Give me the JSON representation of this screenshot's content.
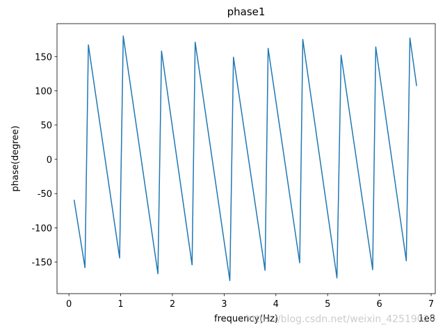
{
  "chart_data": {
    "type": "line",
    "title": "phase1",
    "x_label": "frequency(Hz)",
    "y_label": "phase(degree)",
    "x_offset_label": "1e8",
    "watermark": "https://blog.csdn.net/weixin_42519020",
    "color": "#1f77b4",
    "x": [
      0.1,
      0.31,
      0.376,
      0.98,
      1.05,
      1.72,
      1.79,
      2.38,
      2.44,
      3.11,
      3.18,
      3.79,
      3.85,
      4.46,
      4.52,
      5.18,
      5.26,
      5.87,
      5.93,
      6.52,
      6.59,
      6.72
    ],
    "values": [
      -59,
      -158,
      167,
      -144,
      180,
      -167,
      158,
      -154,
      171,
      -177,
      149,
      -162,
      162,
      -151,
      175,
      -173,
      152,
      -161,
      164,
      -148,
      177,
      107
    ],
    "xlim": [
      -0.23,
      7.08
    ],
    "ylim": [
      -196,
      198
    ],
    "xticks": [
      0,
      1,
      2,
      3,
      4,
      5,
      6,
      7
    ],
    "yticks": [
      -150,
      -100,
      -50,
      0,
      50,
      100,
      150
    ],
    "grid": false
  }
}
